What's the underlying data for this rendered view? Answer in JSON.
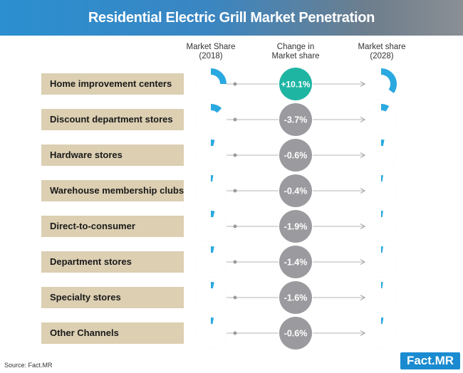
{
  "title": "Residential Electric Grill Market Penetration",
  "columns": {
    "share_2018": [
      "Market Share",
      "(2018)"
    ],
    "change": [
      "Change in",
      "Market share"
    ],
    "share_2028": [
      "Market share",
      "(2028)"
    ]
  },
  "colors": {
    "accent": "#2aa9e0",
    "donut_track": "#d7d7d7",
    "positive_change": "#1fb5a3",
    "negative_change": "#9b9b9f",
    "label_bg": "#dccfb2"
  },
  "chart_data": {
    "type": "table",
    "title": "Residential Electric Grill Market Penetration",
    "rows": [
      {
        "channel": "Home improvement centers",
        "share_2018": 0.25,
        "change": "+10.1%",
        "share_2028": 0.35
      },
      {
        "channel": "Discount department stores",
        "share_2018": 0.12,
        "change": "-3.7%",
        "share_2028": 0.085
      },
      {
        "channel": "Hardware stores",
        "share_2018": 0.04,
        "change": "-0.6%",
        "share_2028": 0.034
      },
      {
        "channel": "Warehouse membership clubs",
        "share_2018": 0.025,
        "change": "-0.4%",
        "share_2028": 0.021
      },
      {
        "channel": "Direct-to-consumer",
        "share_2018": 0.04,
        "change": "-1.9%",
        "share_2028": 0.021
      },
      {
        "channel": "Department stores",
        "share_2018": 0.035,
        "change": "-1.4%",
        "share_2028": 0.021
      },
      {
        "channel": "Specialty stores",
        "share_2018": 0.035,
        "change": "-1.6%",
        "share_2028": 0.019
      },
      {
        "channel": "Other Channels",
        "share_2018": 0.03,
        "change": "-0.6%",
        "share_2028": 0.024
      }
    ]
  },
  "source": "Source: Fact.MR",
  "logo": "Fact.MR"
}
